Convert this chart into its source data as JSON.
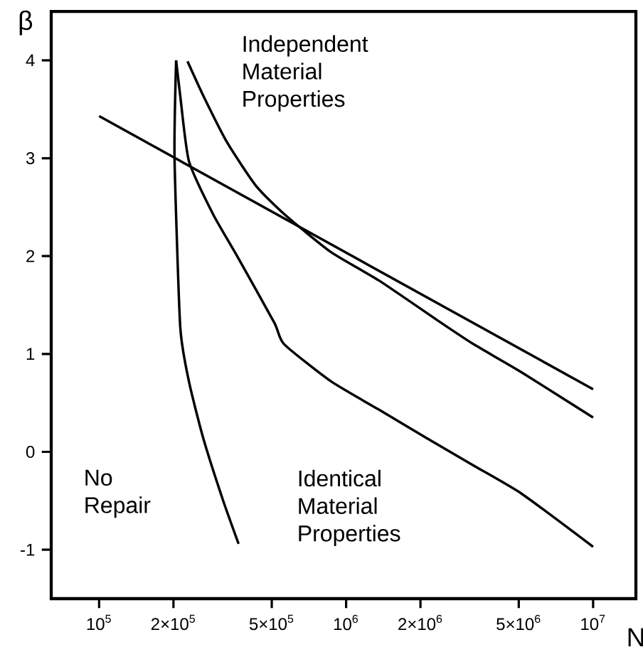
{
  "chart_data": {
    "type": "line",
    "xlabel": "N",
    "ylabel": "β",
    "log": "x",
    "grid": false,
    "xlim": [
      64000,
      14900000
    ],
    "ylim": [
      -1.5,
      4.5
    ],
    "xticks": [
      {
        "value": 100000,
        "label": "10$^{5}$"
      },
      {
        "value": 200000,
        "label": "2×10$^{5}$"
      },
      {
        "value": 500000,
        "label": "5×10$^{5}$"
      },
      {
        "value": 1000000,
        "label": "10$^{6}$"
      },
      {
        "value": 2000000,
        "label": "2×10$^{6}$"
      },
      {
        "value": 5000000,
        "label": "5×10$^{6}$"
      },
      {
        "value": 10000000,
        "label": "10$^{7}$"
      }
    ],
    "yticks": [
      -1,
      0,
      1,
      2,
      3,
      4
    ],
    "series": [
      {
        "color": "#000000",
        "x": [
          100000,
          10000000
        ],
        "values": [
          3.43,
          0.64
        ]
      },
      {
        "color": "#000000",
        "x": [
          228000,
          264000,
          330000,
          431000,
          561000,
          869000,
          1360000,
          2420000,
          3280000,
          5150000,
          10000000
        ],
        "values": [
          3.99,
          3.64,
          3.16,
          2.72,
          2.43,
          2.04,
          1.75,
          1.32,
          1.1,
          0.81,
          0.35
        ]
      },
      {
        "color": "#000000",
        "x": [
          205000,
          213000,
          231000,
          289000,
          362000,
          512000,
          561000,
          869000,
          1360000,
          2120000,
          3280000,
          5150000,
          10000000
        ],
        "values": [
          4.0,
          3.64,
          2.97,
          2.43,
          2.0,
          1.32,
          1.1,
          0.72,
          0.43,
          0.14,
          -0.14,
          -0.43,
          -0.97
        ]
      },
      {
        "color": "#000000",
        "x": [
          205000,
          202000,
          213000,
          231000,
          264000,
          317000,
          367000
        ],
        "values": [
          4.0,
          3.01,
          1.28,
          0.72,
          0.14,
          -0.49,
          -0.94
        ]
      }
    ],
    "annotations": [
      "Independent Material Properties",
      "No Repair",
      "Identical Material Properties"
    ]
  }
}
